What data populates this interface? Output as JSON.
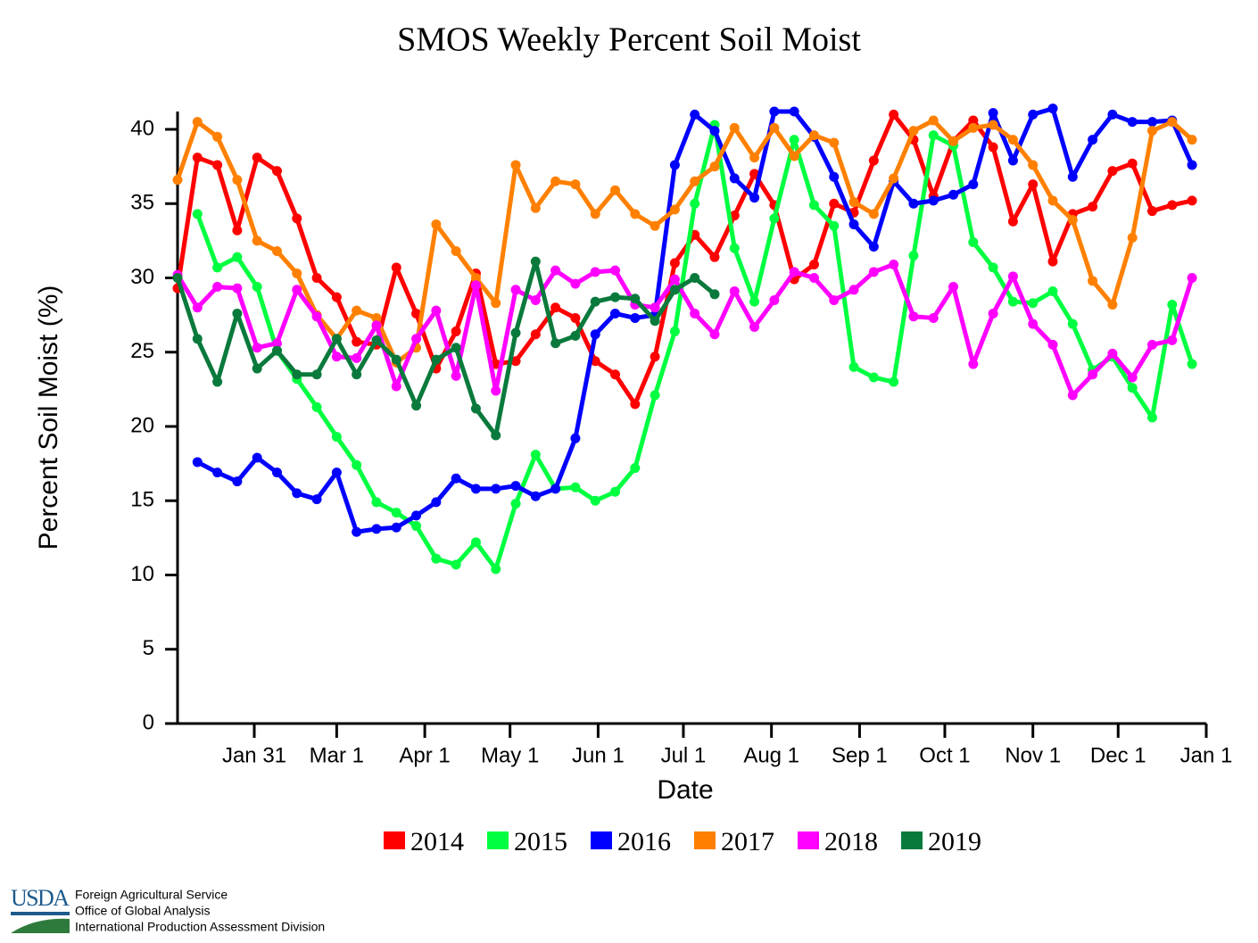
{
  "chart_data": {
    "type": "line",
    "title": "SMOS Weekly Percent Soil Moist",
    "xlabel": "Date",
    "ylabel": "Percent Soil Moist (%)",
    "x": [
      3,
      10,
      17,
      24,
      31,
      38,
      45,
      52,
      59,
      66,
      73,
      80,
      87,
      94,
      101,
      108,
      115,
      122,
      129,
      136,
      143,
      150,
      157,
      164,
      171,
      178,
      185,
      192,
      199,
      206,
      213,
      220,
      227,
      234,
      241,
      248,
      255,
      262,
      269,
      276,
      283,
      290,
      297,
      304,
      311,
      318,
      325,
      332,
      339,
      346,
      353,
      360
    ],
    "xlim": [
      3,
      365
    ],
    "xticks": [
      {
        "value": 30,
        "label": "Jan 31"
      },
      {
        "value": 59,
        "label": "Mar 1"
      },
      {
        "value": 90,
        "label": "Apr 1"
      },
      {
        "value": 120,
        "label": "May 1"
      },
      {
        "value": 151,
        "label": "Jun 1"
      },
      {
        "value": 181,
        "label": "Jul 1"
      },
      {
        "value": 212,
        "label": "Aug 1"
      },
      {
        "value": 243,
        "label": "Sep 1"
      },
      {
        "value": 273,
        "label": "Oct 1"
      },
      {
        "value": 304,
        "label": "Nov 1"
      },
      {
        "value": 334,
        "label": "Dec 1"
      },
      {
        "value": 365,
        "label": "Jan 1"
      }
    ],
    "ylim": [
      0,
      41.2
    ],
    "yticks": [
      0,
      5,
      10,
      15,
      20,
      25,
      30,
      35,
      40
    ],
    "series": [
      {
        "name": "2014",
        "color": "#ff0000",
        "values": [
          29.3,
          38.1,
          37.6,
          33.2,
          38.1,
          37.2,
          34.0,
          30.0,
          28.7,
          25.7,
          25.5,
          30.7,
          27.6,
          23.9,
          26.4,
          30.3,
          24.2,
          24.4,
          26.2,
          28.0,
          27.3,
          24.4,
          23.5,
          21.5,
          24.7,
          31.0,
          32.9,
          31.4,
          34.2,
          37.0,
          34.9,
          29.9,
          30.9,
          35.0,
          34.4,
          37.9,
          41.0,
          39.3,
          35.5,
          39.2,
          40.6,
          38.8,
          33.8,
          36.3,
          31.1,
          34.3,
          34.8,
          37.2,
          37.7,
          34.5,
          34.9,
          35.2
        ]
      },
      {
        "name": "2015",
        "color": "#00ff40",
        "values": [
          null,
          34.3,
          30.7,
          31.4,
          29.4,
          25.1,
          23.2,
          21.3,
          19.3,
          17.4,
          14.9,
          14.2,
          13.3,
          11.1,
          10.7,
          12.2,
          10.4,
          14.8,
          18.1,
          15.8,
          15.9,
          15.0,
          15.6,
          17.2,
          22.1,
          26.4,
          35.0,
          40.3,
          32.0,
          28.4,
          34.0,
          39.3,
          34.9,
          33.5,
          24.0,
          23.3,
          23.0,
          31.5,
          39.6,
          38.9,
          32.4,
          30.7,
          28.4,
          28.3,
          29.1,
          26.9,
          23.8,
          24.7,
          22.6,
          20.6,
          28.2,
          24.2
        ]
      },
      {
        "name": "2016",
        "color": "#0000ff",
        "values": [
          null,
          17.6,
          16.9,
          16.3,
          17.9,
          16.9,
          15.5,
          15.1,
          16.9,
          12.9,
          13.1,
          13.2,
          14.0,
          14.9,
          16.5,
          15.8,
          15.8,
          16.0,
          15.3,
          15.8,
          19.2,
          26.2,
          27.6,
          27.3,
          27.5,
          37.6,
          41.0,
          39.9,
          36.7,
          35.4,
          41.2,
          41.2,
          39.5,
          36.8,
          33.6,
          32.1,
          36.5,
          35.0,
          35.2,
          35.6,
          36.3,
          41.1,
          37.9,
          41.0,
          41.4,
          36.8,
          39.3,
          41.0,
          40.5,
          40.5,
          40.6,
          37.6
        ]
      },
      {
        "name": "2017",
        "color": "#ff8000",
        "values": [
          36.6,
          40.5,
          39.5,
          36.6,
          32.5,
          31.8,
          30.3,
          27.5,
          25.9,
          27.8,
          27.3,
          24.3,
          25.3,
          33.6,
          31.8,
          30.0,
          28.3,
          37.6,
          34.7,
          36.5,
          36.3,
          34.3,
          35.9,
          34.3,
          33.5,
          34.6,
          36.5,
          37.5,
          40.1,
          38.1,
          40.1,
          38.2,
          39.6,
          39.1,
          35.1,
          34.3,
          36.7,
          39.9,
          40.6,
          39.2,
          40.1,
          40.3,
          39.3,
          37.6,
          35.2,
          33.9,
          29.8,
          28.2,
          32.7,
          39.9,
          40.5,
          39.3
        ]
      },
      {
        "name": "2018",
        "color": "#ff00ff",
        "values": [
          30.2,
          28.0,
          29.4,
          29.3,
          25.3,
          25.6,
          29.2,
          27.4,
          24.7,
          24.6,
          26.8,
          22.7,
          25.9,
          27.8,
          23.4,
          29.5,
          22.4,
          29.2,
          28.5,
          30.5,
          29.6,
          30.4,
          30.5,
          28.2,
          28.0,
          29.9,
          27.6,
          26.2,
          29.1,
          26.7,
          28.5,
          30.4,
          30.0,
          28.5,
          29.2,
          30.4,
          30.9,
          27.4,
          27.3,
          29.4,
          24.2,
          27.6,
          30.1,
          26.9,
          25.5,
          22.1,
          23.5,
          24.9,
          23.3,
          25.5,
          25.8,
          30.0
        ]
      },
      {
        "name": "2019",
        "color": "#0a7a3c",
        "values": [
          30.0,
          25.9,
          23.0,
          27.6,
          23.9,
          25.1,
          23.5,
          23.5,
          25.9,
          23.5,
          25.8,
          24.5,
          21.4,
          24.5,
          25.3,
          21.2,
          19.4,
          26.3,
          31.1,
          25.6,
          26.1,
          28.4,
          28.7,
          28.6,
          27.1,
          29.2,
          30.0,
          28.9,
          null,
          null,
          null,
          null,
          null,
          null,
          null,
          null,
          null,
          null,
          null,
          null,
          null,
          null,
          null,
          null,
          null,
          null,
          null,
          null,
          null,
          null,
          null,
          null
        ]
      }
    ]
  },
  "footer": {
    "agency": "USDA",
    "lines": [
      "Foreign Agricultural Service",
      "Office of Global Analysis",
      "International Production Assessment Division"
    ]
  }
}
